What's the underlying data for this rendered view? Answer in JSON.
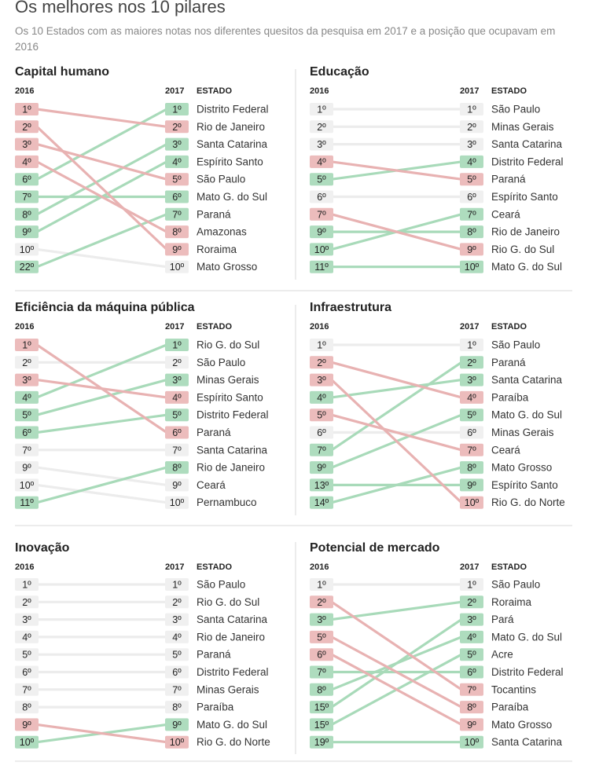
{
  "header": {
    "title": "Os melhores nos 10 pilares",
    "subtitle": "Os 10 Estados com as maiores notas nos diferentes quesitos da pesquisa em 2017 e a posição que ocupavam em 2016"
  },
  "colors": {
    "up": "#a8dab9",
    "down": "#e8b2b2",
    "same": "#ececec",
    "badge_up": "#aedcbe",
    "badge_down": "#ecbcbc",
    "badge_same": "#f0f0f0"
  },
  "chart_data": [
    {
      "type": "slope",
      "title": "Capital humano",
      "col_2016": "2016",
      "col_2017": "2017",
      "col_state": "ESTADO",
      "states": [
        "Distrito Federal",
        "Rio de Janeiro",
        "Santa Catarina",
        "Espírito Santo",
        "São Paulo",
        "Mato G. do Sul",
        "Paraná",
        "Amazonas",
        "Roraima",
        "Mato Grosso"
      ],
      "rank_2017": [
        1,
        2,
        3,
        4,
        5,
        6,
        7,
        8,
        9,
        10
      ],
      "rank_2016": [
        6,
        1,
        8,
        9,
        3,
        7,
        22,
        4,
        2,
        10
      ],
      "labels_2016": [
        "1º",
        "2º",
        "3º",
        "4º",
        "6º",
        "7º",
        "8º",
        "9º",
        "10º",
        "22º"
      ],
      "labels_2017": [
        "1º",
        "2º",
        "3º",
        "4º",
        "5º",
        "6º",
        "7º",
        "8º",
        "9º",
        "10º"
      ]
    },
    {
      "type": "slope",
      "title": "Educação",
      "col_2016": "2016",
      "col_2017": "2017",
      "col_state": "ESTADO",
      "states": [
        "São Paulo",
        "Minas Gerais",
        "Santa Catarina",
        "Distrito Federal",
        "Paraná",
        "Espírito Santo",
        "Ceará",
        "Rio de Janeiro",
        "Rio G. do Sul",
        "Mato G. do Sul"
      ],
      "rank_2017": [
        1,
        2,
        3,
        4,
        5,
        6,
        7,
        8,
        9,
        10
      ],
      "rank_2016": [
        1,
        2,
        3,
        5,
        4,
        6,
        10,
        9,
        7,
        11
      ],
      "labels_2016": [
        "1º",
        "2º",
        "3º",
        "4º",
        "5º",
        "6º",
        "7º",
        "9º",
        "10º",
        "11º"
      ],
      "labels_2017": [
        "1º",
        "2º",
        "3º",
        "4º",
        "5º",
        "6º",
        "7º",
        "8º",
        "9º",
        "10º"
      ]
    },
    {
      "type": "slope",
      "title": "Eficiência da máquina pública",
      "col_2016": "2016",
      "col_2017": "2017",
      "col_state": "ESTADO",
      "states": [
        "Rio G. do Sul",
        "São Paulo",
        "Minas Gerais",
        "Espírito Santo",
        "Distrito Federal",
        "Paraná",
        "Santa Catarina",
        "Rio de Janeiro",
        "Ceará",
        "Pernambuco"
      ],
      "rank_2017": [
        1,
        2,
        3,
        4,
        5,
        6,
        7,
        8,
        9,
        10
      ],
      "rank_2016": [
        4,
        2,
        5,
        3,
        6,
        1,
        7,
        11,
        9,
        10
      ],
      "labels_2016": [
        "1º",
        "2º",
        "3º",
        "4º",
        "5º",
        "6º",
        "7º",
        "9º",
        "10º",
        "11º"
      ],
      "labels_2017": [
        "1º",
        "2º",
        "3º",
        "4º",
        "5º",
        "6º",
        "7º",
        "8º",
        "9º",
        "10º"
      ]
    },
    {
      "type": "slope",
      "title": "Infraestrutura",
      "col_2016": "2016",
      "col_2017": "2017",
      "col_state": "ESTADO",
      "states": [
        "São Paulo",
        "Paraná",
        "Santa Catarina",
        "Paraíba",
        "Mato G. do Sul",
        "Minas Gerais",
        "Ceará",
        "Mato Grosso",
        "Espírito Santo",
        "Rio G. do Norte"
      ],
      "rank_2017": [
        1,
        2,
        3,
        4,
        5,
        6,
        7,
        8,
        9,
        10
      ],
      "rank_2016": [
        1,
        7,
        4,
        2,
        9,
        6,
        5,
        14,
        13,
        3
      ],
      "labels_2016": [
        "1º",
        "2º",
        "3º",
        "4º",
        "5º",
        "6º",
        "7º",
        "9º",
        "13º",
        "14º"
      ],
      "labels_2017": [
        "1º",
        "2º",
        "3º",
        "4º",
        "5º",
        "6º",
        "7º",
        "8º",
        "9º",
        "10º"
      ]
    },
    {
      "type": "slope",
      "title": "Inovação",
      "col_2016": "2016",
      "col_2017": "2017",
      "col_state": "ESTADO",
      "states": [
        "São Paulo",
        "Rio G. do Sul",
        "Santa Catarina",
        "Rio de Janeiro",
        "Paraná",
        "Distrito Federal",
        "Minas Gerais",
        "Paraíba",
        "Mato G. do Sul",
        "Rio G. do Norte"
      ],
      "rank_2017": [
        1,
        2,
        3,
        4,
        5,
        6,
        7,
        8,
        9,
        10
      ],
      "rank_2016": [
        1,
        2,
        3,
        4,
        5,
        6,
        7,
        8,
        10,
        9
      ],
      "labels_2016": [
        "1º",
        "2º",
        "3º",
        "4º",
        "5º",
        "6º",
        "7º",
        "8º",
        "9º",
        "10º"
      ],
      "labels_2017": [
        "1º",
        "2º",
        "3º",
        "4º",
        "5º",
        "6º",
        "7º",
        "8º",
        "9º",
        "10º"
      ]
    },
    {
      "type": "slope",
      "title": "Potencial de mercado",
      "col_2016": "2016",
      "col_2017": "2017",
      "col_state": "ESTADO",
      "states": [
        "São Paulo",
        "Roraima",
        "Pará",
        "Mato G. do Sul",
        "Acre",
        "Distrito Federal",
        "Tocantins",
        "Paraíba",
        "Mato Grosso",
        "Santa Catarina"
      ],
      "rank_2017": [
        1,
        2,
        3,
        4,
        5,
        6,
        7,
        8,
        9,
        10
      ],
      "rank_2016": [
        1,
        3,
        15,
        8,
        15,
        7,
        2,
        5,
        6,
        19
      ],
      "labels_2016": [
        "1º",
        "2º",
        "3º",
        "5º",
        "6º",
        "7º",
        "8º",
        "15º",
        "15º",
        "19º"
      ],
      "labels_2017": [
        "1º",
        "2º",
        "3º",
        "4º",
        "5º",
        "6º",
        "7º",
        "8º",
        "9º",
        "10º"
      ]
    }
  ]
}
